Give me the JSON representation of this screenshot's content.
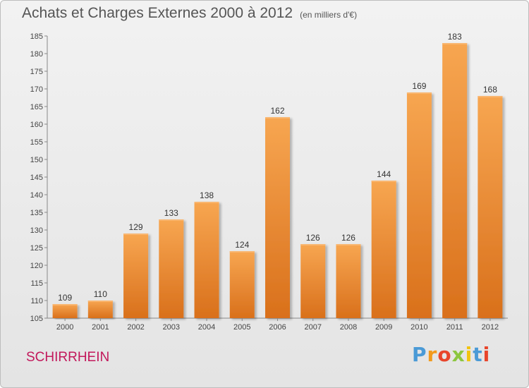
{
  "title": "Achats et Charges Externes 2000 à 2012",
  "unit": "(en milliers d'€)",
  "commune": "SCHIRRHEIN",
  "brand": {
    "letters": [
      "P",
      "r",
      "o",
      "x",
      "i",
      "t",
      "i"
    ],
    "colors": [
      "#4a9ad6",
      "#f29a1c",
      "#e8452b",
      "#8cc63f",
      "#f2c40f",
      "#4a9ad6",
      "#e8452b"
    ]
  },
  "chart_data": {
    "type": "bar",
    "categories": [
      "2000",
      "2001",
      "2002",
      "2003",
      "2004",
      "2005",
      "2006",
      "2007",
      "2008",
      "2009",
      "2010",
      "2011",
      "2012"
    ],
    "values": [
      109,
      110,
      129,
      133,
      138,
      124,
      162,
      126,
      126,
      144,
      169,
      183,
      168
    ],
    "ylim": [
      105,
      185
    ],
    "yticks": [
      105,
      110,
      115,
      120,
      125,
      130,
      135,
      140,
      145,
      150,
      155,
      160,
      165,
      170,
      175,
      180,
      185
    ],
    "grid": false,
    "bar_color": "#f0923a"
  }
}
